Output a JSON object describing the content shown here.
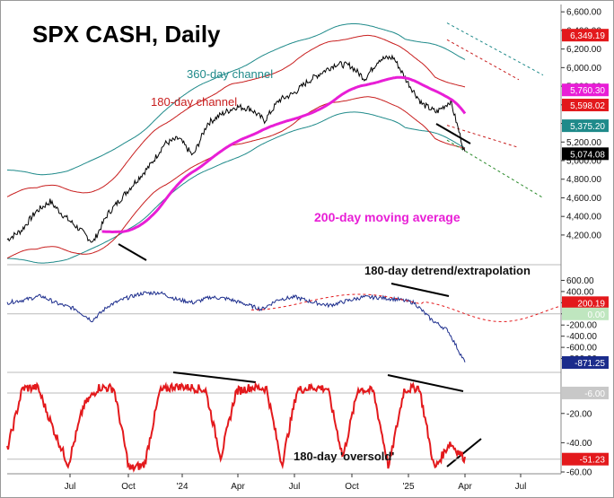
{
  "chart_data": {
    "type": "line",
    "title": "SPX CASH, Daily",
    "x_ticks": [
      "Jul",
      "Oct",
      "'24",
      "Apr",
      "Jul",
      "Oct",
      "'25",
      "Apr",
      "Jul"
    ],
    "panels": [
      {
        "name": "price",
        "ylim": [
          3900,
          6650
        ],
        "y_ticks": [
          4200,
          4400,
          4600,
          4800,
          5000,
          5200,
          5400,
          5600,
          5800,
          6000,
          6200,
          6400,
          6600
        ],
        "y_tick_labels": [
          "4,200.00",
          "4,400.00",
          "4,600.00",
          "4,800.00",
          "5,000.00",
          "5,200.00",
          "5,400.00",
          "5,600.00",
          "5,800.00",
          "6,000.00",
          "6,200.00",
          "6,400.00",
          "6,600.00"
        ],
        "value_tags": [
          {
            "value": 6349.19,
            "label": "6,349.19",
            "bg": "#e3191c",
            "fg": "#ffffff"
          },
          {
            "value": 5760.3,
            "label": "5,760.30",
            "bg": "#e81ed6",
            "fg": "#ffffff"
          },
          {
            "value": 5598.02,
            "label": "5,598.02",
            "bg": "#e3191c",
            "fg": "#ffffff"
          },
          {
            "value": 5375.2,
            "label": "5,375.20",
            "bg": "#1f8a8a",
            "fg": "#ffffff"
          },
          {
            "value": 5074.08,
            "label": "5,074.08",
            "bg": "#000000",
            "fg": "#ffffff"
          }
        ],
        "annotations": [
          "360-day channel",
          "180-day channel",
          "200-day moving average"
        ],
        "price_series": [
          4150,
          4250,
          4450,
          4560,
          4400,
          4270,
          4120,
          4420,
          4600,
          4780,
          4950,
          5180,
          5240,
          5050,
          5400,
          5500,
          5580,
          5560,
          5430,
          5650,
          5720,
          5850,
          5950,
          6040,
          6020,
          5880,
          6090,
          6110,
          5840,
          5610,
          5520,
          5640,
          5074
        ]
      },
      {
        "name": "180-day detrend/extrapolation",
        "ylim": [
          -1000,
          800
        ],
        "y_ticks": [
          600,
          400,
          200,
          0,
          -200,
          -400,
          -600,
          -800
        ],
        "y_tick_labels": [
          "600.00",
          "400.00",
          "200.00",
          "0.00",
          "-200.00",
          "-400.00",
          "-600.00",
          "-800.00"
        ],
        "value_tags": [
          {
            "value": 200.19,
            "label": "200.19",
            "bg": "#e3191c",
            "fg": "#ffffff"
          },
          {
            "value": 0,
            "label": "0.00",
            "bg": "#bfe6bf",
            "fg": "#ffffff"
          },
          {
            "value": -871.25,
            "label": "-871.25",
            "bg": "#1b2c8c",
            "fg": "#ffffff"
          }
        ],
        "annotations": [
          "180-day detrend/extrapolation"
        ]
      },
      {
        "name": "180-day 'oversold'",
        "ylim": [
          -60,
          5
        ],
        "y_ticks": [
          -20,
          -40,
          -60
        ],
        "y_tick_labels": [
          "-20.00",
          "-40.00",
          "-60.00"
        ],
        "value_tags": [
          {
            "value": -6,
            "label": "-6.00",
            "bg": "#c8c8c8",
            "fg": "#ffffff"
          },
          {
            "value": -51.23,
            "label": "-51.23",
            "bg": "#e3191c",
            "fg": "#ffffff"
          }
        ],
        "annotations": [
          "180-day 'oversold'"
        ]
      }
    ],
    "colors": {
      "price": "#000000",
      "ma200": "#e81ed6",
      "channel360": "#1f8a8a",
      "channel180": "#c81e1e",
      "detrend": "#1b2c8c",
      "oversold": "#e3191c",
      "extrapolation": "#e3191c"
    }
  }
}
